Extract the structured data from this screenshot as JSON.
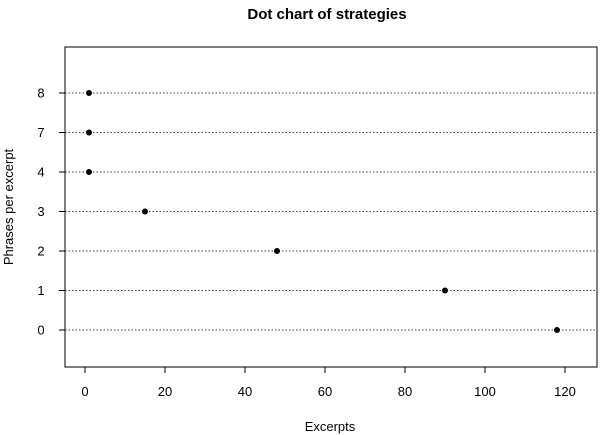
{
  "chart_data": {
    "type": "scatter",
    "title": "Dot chart of strategies",
    "xlabel": "Excerpts",
    "ylabel": "Phrases per excerpt",
    "categories": [
      "0",
      "1",
      "2",
      "3",
      "4",
      "7",
      "8"
    ],
    "values": [
      118,
      90,
      48,
      15,
      1,
      1,
      1
    ],
    "xlim": [
      -5,
      128
    ],
    "xticks": [
      0,
      20,
      40,
      60,
      80,
      100,
      120
    ],
    "grid": "dotted horizontal lines per category",
    "legend": "none"
  }
}
